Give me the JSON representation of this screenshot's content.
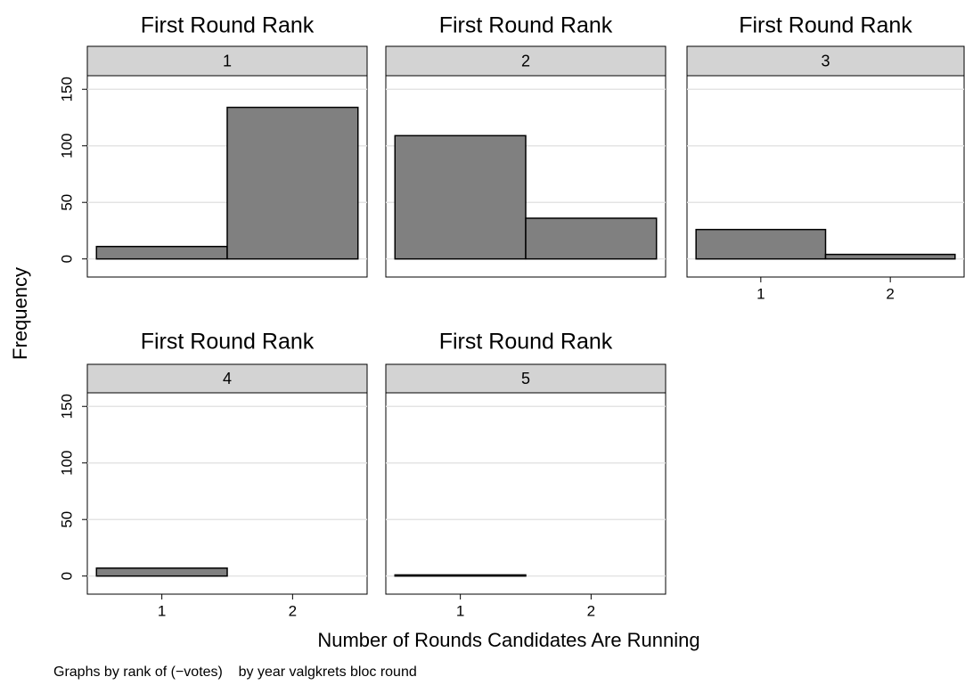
{
  "chart_data": [
    {
      "type": "histogram",
      "title": "First Round Rank",
      "strip": "1",
      "bins": [
        0.5,
        1.5,
        2.5
      ],
      "values": [
        11,
        134
      ],
      "color": "#808080",
      "xlim": [
        0.43,
        2.57
      ],
      "ylim": [
        -16,
        162
      ],
      "yticks": [
        0,
        50,
        100,
        150
      ],
      "show_ytick_labels": true,
      "grid": true
    },
    {
      "type": "histogram",
      "title": "First Round Rank",
      "strip": "2",
      "bins": [
        0.5,
        1.5,
        2.5
      ],
      "values": [
        109,
        36
      ],
      "color": "#808080",
      "xlim": [
        0.43,
        2.57
      ],
      "ylim": [
        -16,
        162
      ],
      "yticks": [
        0,
        50,
        100,
        150
      ],
      "show_ytick_labels": false,
      "grid": true
    },
    {
      "type": "histogram",
      "title": "First Round Rank",
      "strip": "3",
      "bins": [
        0.5,
        1.5,
        2.5
      ],
      "values": [
        26,
        4
      ],
      "color": "#808080",
      "xlim": [
        0.43,
        2.57
      ],
      "ylim": [
        -16,
        162
      ],
      "yticks": [
        0,
        50,
        100,
        150
      ],
      "xticks": [
        1,
        2
      ],
      "show_ytick_labels": false,
      "grid": true
    },
    {
      "type": "histogram",
      "title": "First Round Rank",
      "strip": "4",
      "bins": [
        0.5,
        1.5,
        2.5
      ],
      "values": [
        7,
        0
      ],
      "color": "#808080",
      "xlim": [
        0.43,
        2.57
      ],
      "ylim": [
        -16,
        162
      ],
      "yticks": [
        0,
        50,
        100,
        150
      ],
      "xticks": [
        1,
        2
      ],
      "show_ytick_labels": true,
      "grid": true
    },
    {
      "type": "histogram",
      "title": "First Round Rank",
      "strip": "5",
      "bins": [
        0.5,
        1.5,
        2.5
      ],
      "values": [
        1,
        0
      ],
      "color": "#808080",
      "xlim": [
        0.43,
        2.57
      ],
      "ylim": [
        -16,
        162
      ],
      "yticks": [
        0,
        50,
        100,
        150
      ],
      "xticks": [
        1,
        2
      ],
      "show_ytick_labels": false,
      "grid": true
    }
  ],
  "y_label": "Frequency",
  "x_label": "Number of Rounds Candidates Are Running",
  "note": "Graphs by rank of (−votes)    by year valgkrets bloc round"
}
